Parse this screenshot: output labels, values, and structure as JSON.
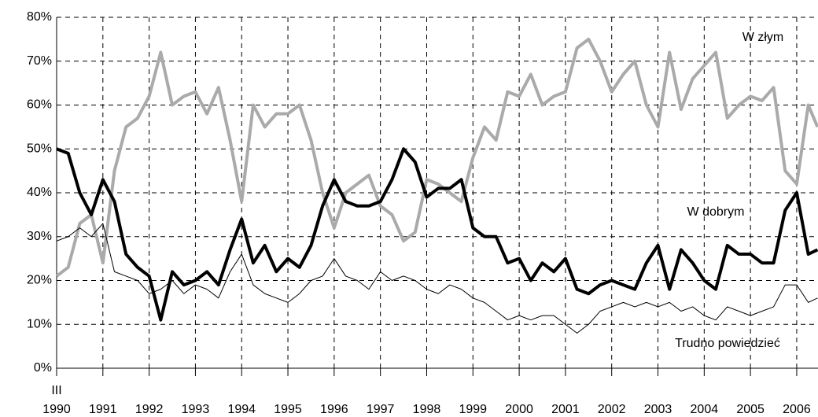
{
  "chart_data": {
    "type": "line",
    "x": [
      1990,
      1990.25,
      1990.5,
      1990.75,
      1991,
      1991.25,
      1991.5,
      1991.75,
      1992,
      1992.25,
      1992.5,
      1992.75,
      1993,
      1993.25,
      1993.5,
      1993.75,
      1994,
      1994.25,
      1994.5,
      1994.75,
      1995,
      1995.25,
      1995.5,
      1995.75,
      1996,
      1996.25,
      1996.5,
      1996.75,
      1997,
      1997.25,
      1997.5,
      1997.75,
      1998,
      1998.25,
      1998.5,
      1998.75,
      1999,
      1999.25,
      1999.5,
      1999.75,
      2000,
      2000.25,
      2000.5,
      2000.75,
      2001,
      2001.25,
      2001.5,
      2001.75,
      2002,
      2002.25,
      2002.5,
      2002.75,
      2003,
      2003.25,
      2003.5,
      2003.75,
      2004,
      2004.25,
      2004.5,
      2004.75,
      2005,
      2005.25,
      2005.5,
      2005.75,
      2006,
      2006.25,
      2006.45
    ],
    "series": [
      {
        "name": "W złym",
        "color": "#aaaaaa",
        "width": 4,
        "values": [
          21,
          23,
          33,
          35,
          24,
          45,
          55,
          57,
          62,
          72,
          60,
          62,
          63,
          58,
          64,
          52,
          38,
          60,
          55,
          58,
          58,
          60,
          52,
          40,
          32,
          40,
          42,
          44,
          37,
          35,
          29,
          31,
          43,
          42,
          40,
          38,
          48,
          55,
          52,
          63,
          62,
          67,
          60,
          62,
          63,
          73,
          75,
          70,
          63,
          67,
          70,
          60,
          55,
          72,
          59,
          66,
          69,
          72,
          57,
          60,
          62,
          61,
          64,
          45,
          42,
          60,
          55
        ]
      },
      {
        "name": "W dobrym",
        "color": "#000000",
        "width": 4,
        "values": [
          50,
          49,
          40,
          35,
          43,
          38,
          26,
          23,
          21,
          11,
          22,
          19,
          20,
          22,
          19,
          27,
          34,
          24,
          28,
          22,
          25,
          23,
          28,
          37,
          43,
          38,
          37,
          37,
          38,
          43,
          50,
          47,
          39,
          41,
          41,
          43,
          32,
          30,
          30,
          24,
          25,
          20,
          24,
          22,
          25,
          18,
          17,
          19,
          20,
          19,
          18,
          24,
          28,
          18,
          27,
          24,
          20,
          18,
          28,
          26,
          26,
          24,
          24,
          36,
          40,
          26,
          27
        ]
      },
      {
        "name": "Trudno powiedzieć",
        "color": "#000000",
        "width": 1,
        "values": [
          29,
          30,
          32,
          30,
          33,
          22,
          21,
          20,
          17,
          18,
          20,
          17,
          19,
          18,
          16,
          22,
          26,
          19,
          17,
          16,
          15,
          17,
          20,
          21,
          25,
          21,
          20,
          18,
          22,
          20,
          21,
          20,
          18,
          17,
          19,
          18,
          16,
          15,
          13,
          11,
          12,
          11,
          12,
          12,
          10,
          8,
          10,
          13,
          14,
          15,
          14,
          15,
          14,
          15,
          13,
          14,
          12,
          11,
          14,
          13,
          12,
          13,
          14,
          19,
          19,
          15,
          16
        ]
      }
    ],
    "xlim": [
      1990,
      2006.46
    ],
    "xticks": [
      1990,
      1991,
      1992,
      1993,
      1994,
      1995,
      1996,
      1997,
      1998,
      1999,
      2000,
      2001,
      2002,
      2003,
      2004,
      2005,
      2006
    ],
    "x_start_label": "III",
    "ylim": [
      0,
      80
    ],
    "yticks": [
      {
        "value": 0,
        "label": "0%"
      },
      {
        "value": 10,
        "label": "10%"
      },
      {
        "value": 20,
        "label": "20%"
      },
      {
        "value": 30,
        "label": "30%"
      },
      {
        "value": 40,
        "label": "40%"
      },
      {
        "value": 50,
        "label": "50%"
      },
      {
        "value": 60,
        "label": "60%"
      },
      {
        "value": 70,
        "label": "70%"
      },
      {
        "value": 80,
        "label": "80%"
      }
    ],
    "grid": true
  }
}
